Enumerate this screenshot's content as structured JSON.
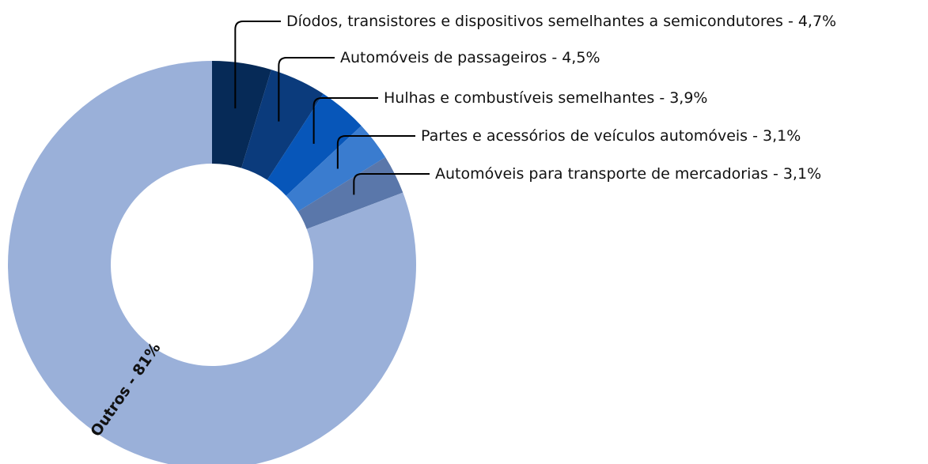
{
  "chart_data": {
    "type": "donut",
    "categories": [
      "Díodos, transistores e dispositivos semelhantes a semicondutores",
      "Automóveis de passageiros",
      "Hulhas e combustíveis semelhantes",
      "Partes e acessórios de veículos automóveis",
      "Automóveis para transporte de mercadorias",
      "Outros"
    ],
    "values": [
      4.7,
      4.5,
      3.9,
      3.1,
      3.1,
      81
    ],
    "value_labels": [
      "-  4,7%",
      "- 4,5%",
      "- 3,9%",
      "- 3,1%",
      "- 3,1%",
      "- 81%"
    ],
    "colors": [
      "#062a57",
      "#0b3b7c",
      "#0756b9",
      "#3a7ccf",
      "#5a77aa",
      "#9ab0d9"
    ]
  }
}
